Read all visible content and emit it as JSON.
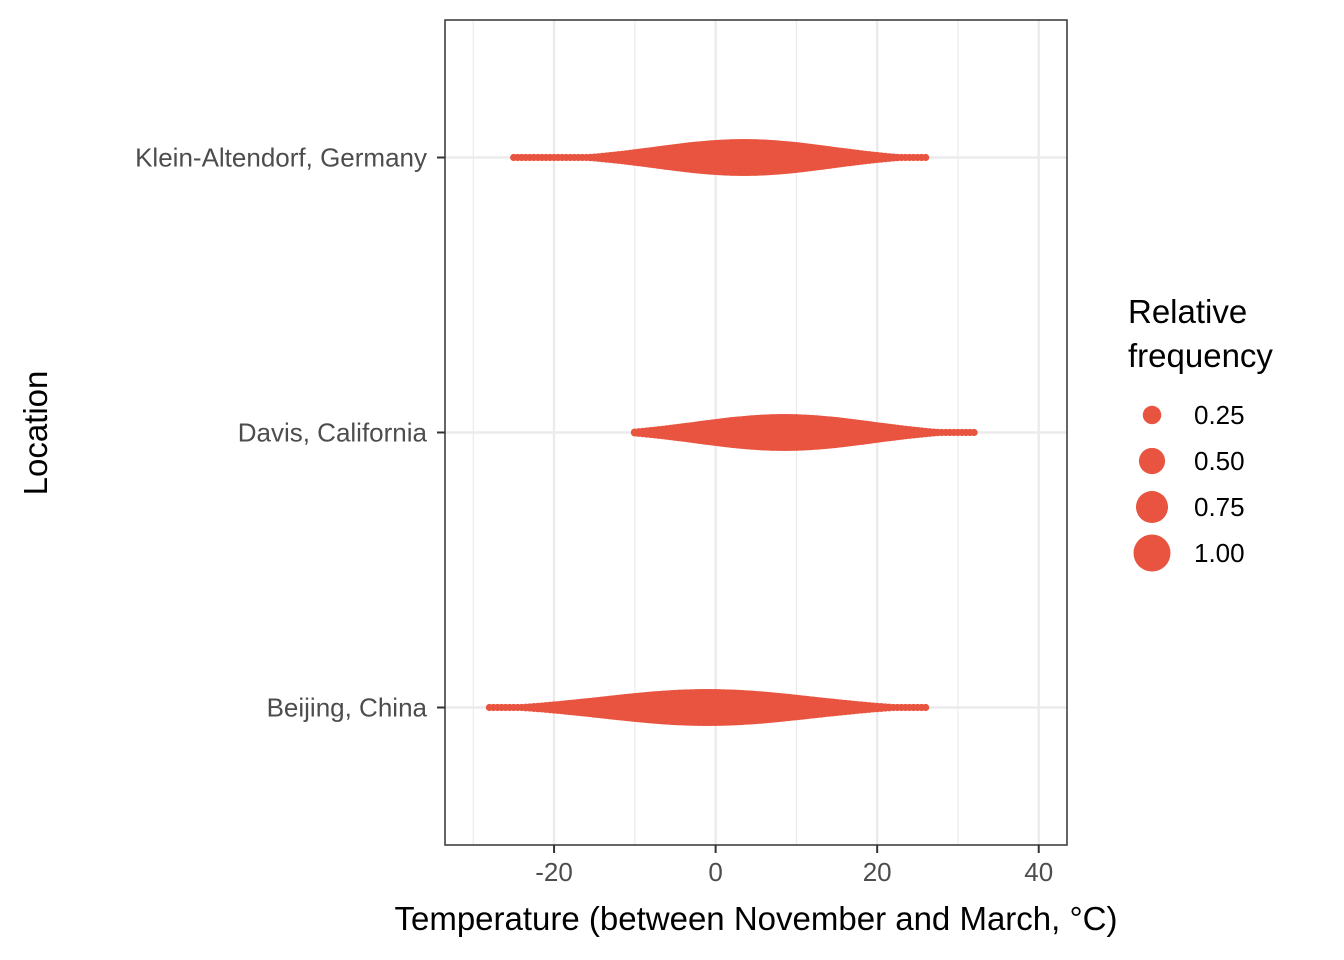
{
  "chart_data": {
    "type": "scatter",
    "xlabel": "Temperature (between November and March, °C)",
    "ylabel": "Location",
    "xlim": [
      -33.5,
      43.5
    ],
    "x_ticks": [
      -20,
      0,
      20,
      40
    ],
    "x_tick_labels": [
      "-20",
      "0",
      "20",
      "40"
    ],
    "categories": [
      "Beijing, China",
      "Davis, California",
      "Klein-Altendorf, Germany"
    ],
    "grid": true,
    "color": "#e8543f",
    "series": [
      {
        "location": "Klein-Altendorf, Germany",
        "x_min": -25,
        "x_max": 26,
        "peak": 3.5,
        "spread": 7.5
      },
      {
        "location": "Davis, California",
        "x_min": -10,
        "x_max": 32,
        "peak": 8.5,
        "spread": 7.5
      },
      {
        "location": "Beijing, China",
        "x_min": -28,
        "x_max": 26,
        "peak": -1,
        "spread": 9
      }
    ],
    "legend": {
      "title": [
        "Relative",
        "frequency"
      ],
      "position": "right",
      "entries": [
        {
          "label": "0.25",
          "value": 0.25
        },
        {
          "label": "0.50",
          "value": 0.5
        },
        {
          "label": "0.75",
          "value": 0.75
        },
        {
          "label": "1.00",
          "value": 1.0
        }
      ]
    }
  }
}
